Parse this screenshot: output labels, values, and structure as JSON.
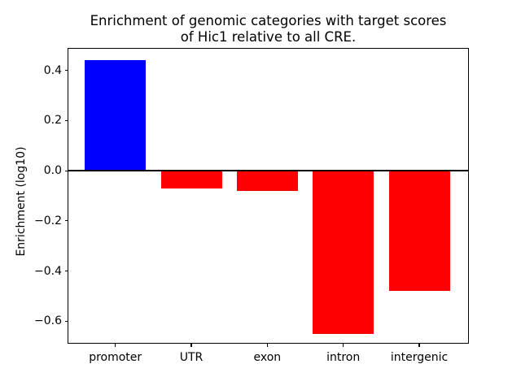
{
  "title_lines": {
    "line1": "Enrichment of genomic categories with target scores",
    "line2": "of Hic1 relative to all CRE."
  },
  "chart_data": {
    "type": "bar",
    "title": "Enrichment of genomic categories with target scores\nof Hic1 relative to all CRE.",
    "xlabel": "",
    "ylabel": "Enrichment (log10)",
    "categories": [
      "promoter",
      "UTR",
      "exon",
      "intron",
      "intergenic"
    ],
    "values": [
      0.44,
      -0.07,
      -0.08,
      -0.65,
      -0.48
    ],
    "bar_colors": [
      "#0000ff",
      "#ff0000",
      "#ff0000",
      "#ff0000",
      "#ff0000"
    ],
    "positive_color": "#0000ff",
    "negative_color": "#ff0000",
    "ylim": [
      -0.69,
      0.49
    ],
    "yticks": [
      0.4,
      0.2,
      0.0,
      -0.2,
      -0.4,
      -0.6
    ],
    "ytick_labels": [
      "0.4",
      "0.2",
      "0.0",
      "−0.2",
      "−0.4",
      "−0.6"
    ],
    "zero_line": true,
    "grid": false,
    "legend": null,
    "axis_color": "#000000",
    "background_color": "#ffffff"
  }
}
